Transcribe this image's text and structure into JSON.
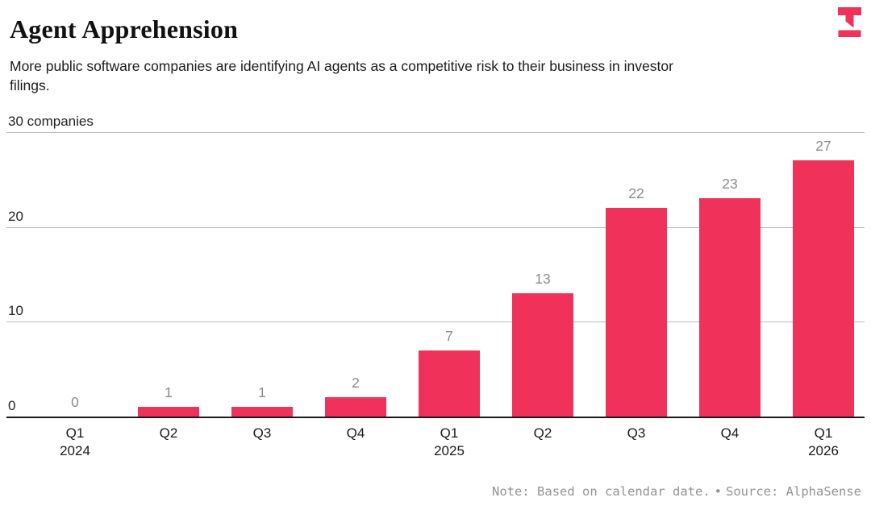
{
  "header": {
    "title": "Agent Apprehension",
    "subtitle_lines": [
      "More public software companies are identifying AI agents as a competitive risk to their business in investor",
      "filings."
    ]
  },
  "logo": {
    "name": "the-information-logo",
    "color": "#f0325a"
  },
  "chart_data": {
    "type": "bar",
    "title": "Agent Apprehension",
    "categories": [
      "Q1 2024",
      "Q2 2024",
      "Q3 2024",
      "Q4 2024",
      "Q1 2025",
      "Q2 2025",
      "Q3 2025",
      "Q4 2025",
      "Q1 2026"
    ],
    "x_tick_labels": [
      {
        "quarter": "Q1",
        "year": "2024"
      },
      {
        "quarter": "Q2",
        "year": ""
      },
      {
        "quarter": "Q3",
        "year": ""
      },
      {
        "quarter": "Q4",
        "year": ""
      },
      {
        "quarter": "Q1",
        "year": "2025"
      },
      {
        "quarter": "Q2",
        "year": ""
      },
      {
        "quarter": "Q3",
        "year": ""
      },
      {
        "quarter": "Q4",
        "year": ""
      },
      {
        "quarter": "Q1",
        "year": "2026"
      }
    ],
    "values": [
      0,
      1,
      1,
      2,
      7,
      13,
      22,
      23,
      27
    ],
    "ylabel": "30 companies",
    "yticks": [
      {
        "value": 0,
        "label": "0"
      },
      {
        "value": 10,
        "label": "10"
      },
      {
        "value": 20,
        "label": "20"
      },
      {
        "value": 30,
        "label": "30 companies"
      }
    ],
    "ylim": [
      0,
      30
    ],
    "grid": true,
    "legend": false,
    "bar_color": "#f0325a",
    "value_label_color": "#8c8c8c",
    "gridline_color": "#bdbdbd",
    "baseline_color": "#1a1a1a"
  },
  "footer": {
    "note": "Note: Based on calendar date.",
    "separator": "•",
    "source": "Source: AlphaSense"
  }
}
